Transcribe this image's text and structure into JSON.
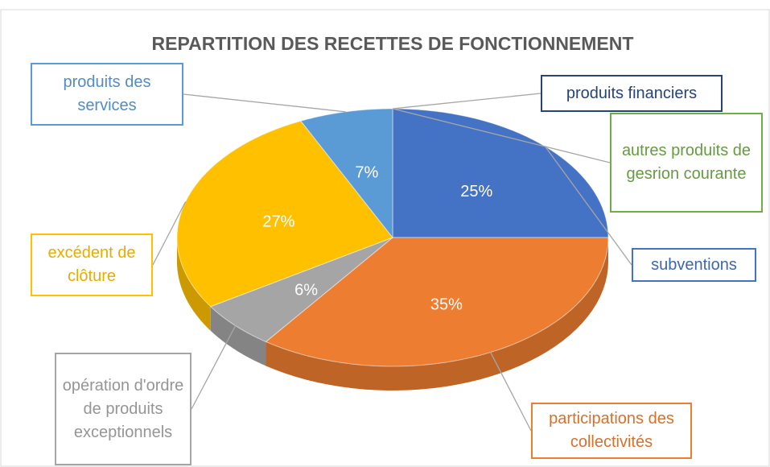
{
  "chart_data": {
    "type": "pie",
    "title": "REPARTITION DES RECETTES DE FONCTIONNEMENT",
    "categories": [
      "produits financiers",
      "autres produits de gesrion courante",
      "subventions",
      "participations des collectivités",
      "opération d'ordre de produits exceptionnels",
      "excédent de clôture",
      "produits des services"
    ],
    "values": [
      0,
      0,
      25,
      35,
      6,
      27,
      7
    ],
    "value_labels": [
      null,
      null,
      "25%",
      "35%",
      "6%",
      "27%",
      "7%"
    ],
    "colors": [
      "#264478",
      "#70ad47",
      "#4472c4",
      "#ed7d31",
      "#a5a5a5",
      "#ffc000",
      "#5b9bd5"
    ],
    "three_d": true
  }
}
